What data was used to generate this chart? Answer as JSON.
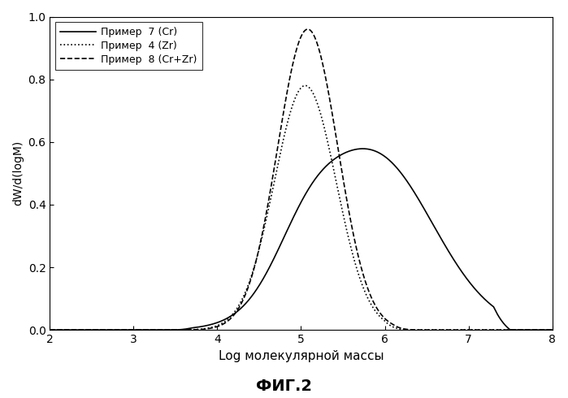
{
  "title": "ФИГ.2",
  "xlabel": "Log молекулярной массы",
  "ylabel": "dW/d(logM)",
  "xlim": [
    2,
    8
  ],
  "ylim": [
    0.0,
    1.0
  ],
  "xticks": [
    2,
    3,
    4,
    5,
    6,
    7,
    8
  ],
  "yticks": [
    0.0,
    0.2,
    0.4,
    0.6,
    0.8,
    1.0
  ],
  "legend": [
    {
      "label": "Пример  7 (Cr)",
      "linestyle": "solid"
    },
    {
      "label": "Пример  4 (Zr)",
      "linestyle": "dotted"
    },
    {
      "label": "Пример  8 (Cr+Zr)",
      "linestyle": "dashed"
    }
  ]
}
